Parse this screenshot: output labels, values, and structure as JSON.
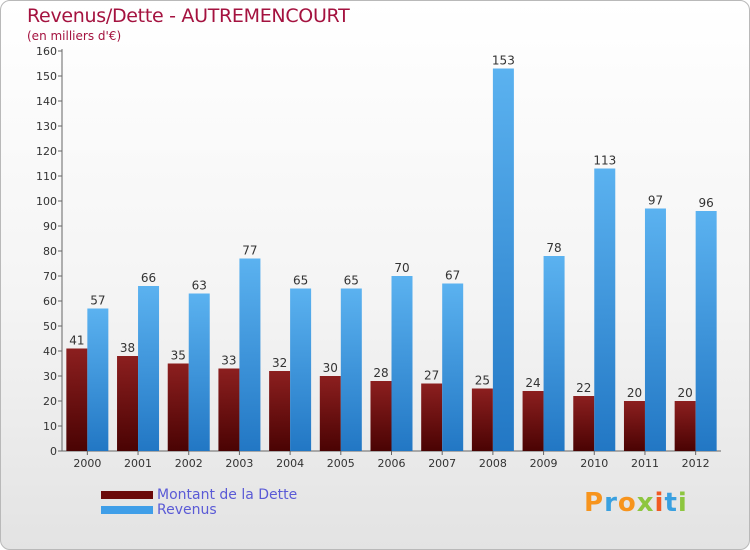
{
  "title": "Revenus/Dette - AUTREMENCOURT",
  "subtitle": "(en milliers d'€)",
  "colors": {
    "dette": "#6b0a0a",
    "revenus": "#3f9ee8",
    "title": "#a4123f"
  },
  "legend": {
    "dette": "Montant de la Dette",
    "revenus": "Revenus"
  },
  "logo": {
    "text": "Proxiti"
  },
  "chart_data": {
    "type": "bar",
    "title": "Revenus/Dette - AUTREMENCOURT",
    "ylabel": "(en milliers d'€)",
    "xlabel": "",
    "ylim": [
      0,
      160
    ],
    "ytick_step": 10,
    "grid": false,
    "legend_position": "bottom-left",
    "categories": [
      "2000",
      "2001",
      "2002",
      "2003",
      "2004",
      "2005",
      "2006",
      "2007",
      "2008",
      "2009",
      "2010",
      "2011",
      "2012"
    ],
    "series": [
      {
        "name": "Montant de la Dette",
        "values": [
          41,
          38,
          35,
          33,
          32,
          30,
          28,
          27,
          25,
          24,
          22,
          20,
          20
        ]
      },
      {
        "name": "Revenus",
        "values": [
          57,
          66,
          63,
          77,
          65,
          65,
          70,
          67,
          153,
          78,
          113,
          97,
          96
        ]
      }
    ]
  }
}
